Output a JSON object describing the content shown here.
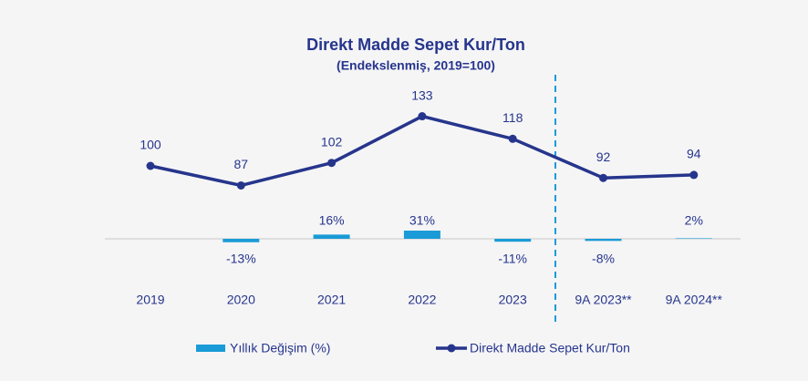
{
  "chart_data": {
    "type": "bar-line",
    "title": "Direkt Madde Sepet Kur/Ton",
    "subtitle": "(Endekslenmiş, 2019=100)",
    "categories": [
      "2019",
      "2020",
      "2021",
      "2022",
      "2023",
      "9A 2023**",
      "9A 2024**"
    ],
    "series": [
      {
        "name": "Yıllık Değişim (%)",
        "type": "bar",
        "axis": "y2",
        "color": "#1a9bd7",
        "values": [
          null,
          -13,
          16,
          31,
          -11,
          -8,
          2
        ],
        "value_labels": [
          null,
          "-13%",
          "16%",
          "31%",
          "-11%",
          "-8%",
          "2%"
        ]
      },
      {
        "name": "Direkt Madde Sepet Kur/Ton",
        "type": "line",
        "axis": "y",
        "color": "#26358c",
        "values": [
          100,
          87,
          102,
          133,
          118,
          92,
          94
        ]
      }
    ],
    "ylim": [
      60,
      140
    ],
    "y2lim": [
      -50,
      50
    ],
    "legend": "bottom"
  }
}
